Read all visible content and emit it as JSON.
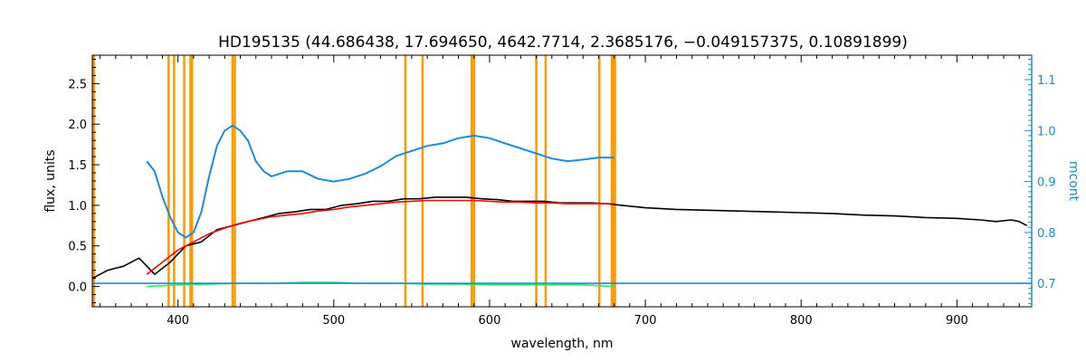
{
  "chart_data": {
    "type": "line",
    "title": "HD195135   (44.686438, 17.694650, 4642.7714, 2.3685176, −0.049157375, 0.10891899)",
    "xlabel": "wavelength, nm",
    "ylabel": "flux, units",
    "y2label": "mcont",
    "xlim": [
      345,
      948
    ],
    "ylim": [
      -0.25,
      2.85
    ],
    "y2lim": [
      0.654,
      1.148
    ],
    "xticks": [
      400,
      500,
      600,
      700,
      800,
      900
    ],
    "xtick_labels": [
      "400",
      "500",
      "600",
      "700",
      "800",
      "900"
    ],
    "yticks": [
      0.0,
      0.5,
      1.0,
      1.5,
      2.0,
      2.5
    ],
    "ytick_labels": [
      "0.0",
      "0.5",
      "1.0",
      "1.5",
      "2.0",
      "2.5"
    ],
    "y2ticks": [
      0.7,
      0.8,
      0.9,
      1.0,
      1.1
    ],
    "y2tick_labels": [
      "0.7",
      "0.8",
      "0.9",
      "1.0",
      "1.1"
    ],
    "grid": false,
    "colors": {
      "observed": "#000000",
      "model": "#ff0000",
      "residual": "#22ee66",
      "mcont": "#1a8cdc",
      "masks": "#ff9900",
      "axes": "#000000"
    },
    "mask_lines_nm": [
      345.5,
      346.0,
      394.0,
      397.5,
      404.0,
      408.0,
      409.0,
      435.0,
      436.5,
      546.0,
      557.0,
      588.5,
      590.0,
      630.0,
      636.0,
      670.5,
      678.5,
      679.5,
      680.5
    ],
    "series": [
      {
        "key": "observed",
        "x": [
          345,
          355,
          365,
          375,
          385,
          395,
          405,
          415,
          425,
          435,
          445,
          455,
          465,
          475,
          485,
          495,
          505,
          515,
          525,
          535,
          545,
          555,
          565,
          575,
          585,
          595,
          605,
          615,
          625,
          635,
          645,
          655,
          665,
          675,
          685,
          700,
          720,
          740,
          760,
          780,
          800,
          820,
          840,
          860,
          880,
          900,
          915,
          925,
          935,
          940,
          945
        ],
        "y": [
          0.1,
          0.2,
          0.25,
          0.35,
          0.15,
          0.3,
          0.5,
          0.55,
          0.7,
          0.75,
          0.8,
          0.85,
          0.9,
          0.92,
          0.95,
          0.95,
          1.0,
          1.02,
          1.05,
          1.05,
          1.08,
          1.08,
          1.1,
          1.1,
          1.1,
          1.08,
          1.07,
          1.05,
          1.05,
          1.05,
          1.03,
          1.03,
          1.03,
          1.02,
          1.0,
          0.97,
          0.95,
          0.94,
          0.93,
          0.92,
          0.91,
          0.9,
          0.88,
          0.87,
          0.85,
          0.84,
          0.82,
          0.8,
          0.82,
          0.8,
          0.75
        ]
      },
      {
        "key": "model",
        "x": [
          380,
          390,
          400,
          410,
          420,
          430,
          440,
          450,
          460,
          470,
          480,
          490,
          500,
          510,
          520,
          530,
          540,
          550,
          560,
          570,
          580,
          590,
          600,
          610,
          620,
          630,
          640,
          650,
          660,
          670,
          680
        ],
        "y": [
          0.15,
          0.3,
          0.45,
          0.55,
          0.65,
          0.72,
          0.78,
          0.82,
          0.86,
          0.88,
          0.9,
          0.93,
          0.95,
          0.98,
          1.0,
          1.02,
          1.04,
          1.05,
          1.06,
          1.06,
          1.06,
          1.06,
          1.05,
          1.04,
          1.04,
          1.03,
          1.03,
          1.02,
          1.02,
          1.02,
          1.02
        ]
      },
      {
        "key": "residual",
        "x": [
          380,
          400,
          420,
          440,
          460,
          480,
          500,
          520,
          540,
          560,
          580,
          600,
          620,
          640,
          660,
          680
        ],
        "y": [
          0.0,
          0.02,
          0.03,
          0.04,
          0.04,
          0.05,
          0.05,
          0.04,
          0.04,
          0.03,
          0.03,
          0.02,
          0.02,
          0.02,
          0.02,
          0.0
        ]
      },
      {
        "key": "mcont",
        "axis": "right",
        "x": [
          380,
          385,
          390,
          395,
          400,
          405,
          410,
          415,
          420,
          425,
          430,
          435,
          440,
          445,
          450,
          455,
          460,
          470,
          480,
          490,
          500,
          510,
          520,
          530,
          540,
          550,
          560,
          570,
          580,
          590,
          600,
          610,
          620,
          630,
          640,
          650,
          660,
          670,
          680
        ],
        "y": [
          0.94,
          0.92,
          0.87,
          0.83,
          0.8,
          0.79,
          0.8,
          0.84,
          0.91,
          0.97,
          1.0,
          1.01,
          1.0,
          0.98,
          0.94,
          0.92,
          0.91,
          0.92,
          0.92,
          0.905,
          0.9,
          0.905,
          0.915,
          0.93,
          0.95,
          0.96,
          0.97,
          0.975,
          0.985,
          0.99,
          0.985,
          0.975,
          0.965,
          0.955,
          0.945,
          0.94,
          0.943,
          0.947,
          0.947
        ]
      },
      {
        "key": "mcont-baseline",
        "axis": "right",
        "x": [
          345,
          948
        ],
        "y": [
          0.7,
          0.7
        ]
      }
    ]
  }
}
